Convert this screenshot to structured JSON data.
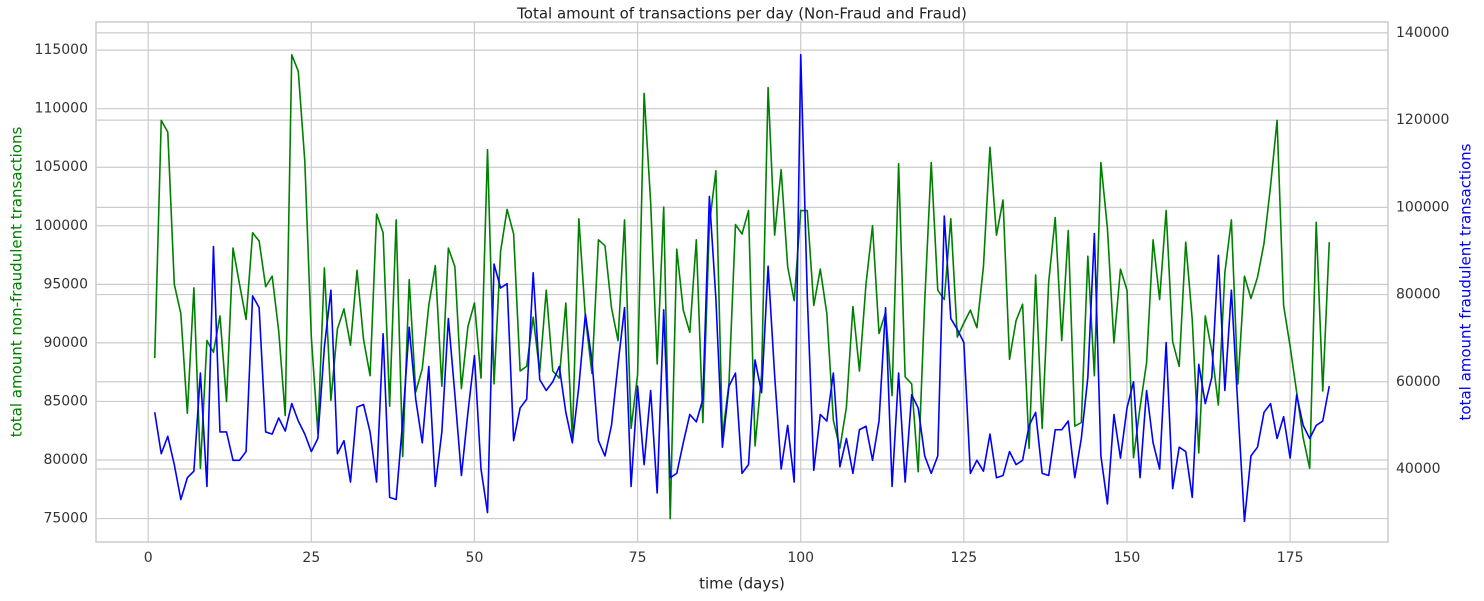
{
  "chart_data": {
    "type": "line",
    "title": "Total amount of transactions per day (Non-Fraud and Fraud)",
    "x_label": "time (days)",
    "y_label": "total amount non-fraudulent transactions",
    "y2_label": "total amount fraudulent transactions",
    "x": [
      1,
      2,
      3,
      4,
      5,
      6,
      7,
      8,
      9,
      10,
      11,
      12,
      13,
      14,
      15,
      16,
      17,
      18,
      19,
      20,
      21,
      22,
      23,
      24,
      25,
      26,
      27,
      28,
      29,
      30,
      31,
      32,
      33,
      34,
      35,
      36,
      37,
      38,
      39,
      40,
      41,
      42,
      43,
      44,
      45,
      46,
      47,
      48,
      49,
      50,
      51,
      52,
      53,
      54,
      55,
      56,
      57,
      58,
      59,
      60,
      61,
      62,
      63,
      64,
      65,
      66,
      67,
      68,
      69,
      70,
      71,
      72,
      73,
      74,
      75,
      76,
      77,
      78,
      79,
      80,
      81,
      82,
      83,
      84,
      85,
      86,
      87,
      88,
      89,
      90,
      91,
      92,
      93,
      94,
      95,
      96,
      97,
      98,
      99,
      100,
      101,
      102,
      103,
      104,
      105,
      106,
      107,
      108,
      109,
      110,
      111,
      112,
      113,
      114,
      115,
      116,
      117,
      118,
      119,
      120,
      121,
      122,
      123,
      124,
      125,
      126,
      127,
      128,
      129,
      130,
      131,
      132,
      133,
      134,
      135,
      136,
      137,
      138,
      139,
      140,
      141,
      142,
      143,
      144,
      145,
      146,
      147,
      148,
      149,
      150,
      151,
      152,
      153,
      154,
      155,
      156,
      157,
      158,
      159,
      160,
      161,
      162,
      163,
      164,
      165,
      166,
      167,
      168,
      169,
      170,
      171,
      172,
      173,
      174,
      175,
      176,
      177,
      178,
      179,
      180,
      181
    ],
    "series": [
      {
        "name": "total amount non-fraudulent transactions",
        "color": "#008000",
        "axis": "y",
        "values": [
          88700,
          109000,
          108000,
          95000,
          92500,
          84000,
          94700,
          79300,
          90200,
          89200,
          92300,
          85000,
          98100,
          95000,
          92000,
          99400,
          98700,
          94800,
          95700,
          91000,
          83800,
          114600,
          113200,
          105500,
          90500,
          82300,
          96400,
          85100,
          91200,
          92900,
          89800,
          96200,
          90300,
          87200,
          101000,
          99400,
          84600,
          100500,
          80300,
          95400,
          85800,
          87800,
          93200,
          96600,
          86300,
          98100,
          96500,
          86100,
          91400,
          93400,
          87000,
          106500,
          86500,
          97800,
          101400,
          99300,
          87600,
          88000,
          92200,
          87500,
          94500,
          87600,
          87000,
          93400,
          81800,
          100600,
          92200,
          87400,
          98800,
          98300,
          93000,
          90200,
          100500,
          82700,
          87300,
          111300,
          102000,
          88200,
          101600,
          75000,
          98000,
          92800,
          90900,
          98800,
          83200,
          100100,
          104700,
          82000,
          86500,
          100100,
          99300,
          101300,
          81200,
          87300,
          111800,
          99200,
          104800,
          96500,
          93600,
          101300,
          101300,
          93200,
          96300,
          92500,
          83400,
          81000,
          84500,
          93100,
          87600,
          95000,
          100000,
          90800,
          92600,
          85500,
          105300,
          87100,
          86500,
          79000,
          93500,
          105400,
          94500,
          93700,
          100600,
          90500,
          91700,
          92800,
          91300,
          96500,
          106700,
          99200,
          102200,
          88600,
          91900,
          93300,
          81000,
          95800,
          82700,
          95200,
          100700,
          90200,
          99600,
          82900,
          83200,
          97400,
          87200,
          105400,
          99800,
          90000,
          96300,
          94500,
          80200,
          84500,
          88300,
          98800,
          93700,
          101300,
          90100,
          88000,
          98600,
          92000,
          80600,
          92300,
          89300,
          84700,
          96000,
          100500,
          86500,
          95700,
          93800,
          95600,
          98500,
          103400,
          109000,
          93200,
          89700,
          85800,
          81900,
          79300,
          100300,
          85900,
          98600
        ]
      },
      {
        "name": "total amount fraudulent transactions",
        "color": "#0000ff",
        "axis": "y2",
        "values": [
          53000,
          43500,
          47500,
          41000,
          33000,
          38000,
          39500,
          62000,
          36000,
          91000,
          48500,
          48500,
          42000,
          42000,
          44000,
          79700,
          77000,
          48500,
          48000,
          51700,
          48700,
          55000,
          51000,
          48000,
          44000,
          47000,
          68000,
          81000,
          43500,
          46500,
          37000,
          54200,
          54800,
          48500,
          37000,
          71000,
          33500,
          33000,
          51000,
          72500,
          56000,
          46000,
          63500,
          36000,
          48500,
          74500,
          57000,
          38500,
          53000,
          66000,
          40000,
          30000,
          87000,
          81500,
          82500,
          46500,
          54000,
          56000,
          85000,
          60500,
          58000,
          60000,
          63500,
          53000,
          46000,
          59000,
          75500,
          65000,
          46500,
          43000,
          50000,
          64000,
          77000,
          36000,
          59000,
          41000,
          58000,
          34500,
          76500,
          38000,
          39000,
          46000,
          52500,
          50800,
          56000,
          102500,
          79000,
          45000,
          59000,
          62000,
          39000,
          41000,
          65000,
          57500,
          86500,
          61500,
          40000,
          50000,
          37000,
          135000,
          80000,
          39700,
          52500,
          51000,
          62000,
          40500,
          47000,
          39000,
          49000,
          49800,
          42000,
          51000,
          77000,
          36000,
          62000,
          37000,
          57000,
          54000,
          43000,
          39000,
          43000,
          98000,
          74500,
          72000,
          69000,
          39000,
          42000,
          39500,
          48000,
          38000,
          38500,
          44000,
          41000,
          42000,
          50000,
          53000,
          39000,
          38500,
          49000,
          49000,
          51000,
          38000,
          47000,
          61000,
          94000,
          43000,
          32000,
          52500,
          42500,
          54000,
          60000,
          38000,
          58000,
          46000,
          40000,
          69000,
          35500,
          45000,
          44000,
          33500,
          64000,
          55000,
          61000,
          89000,
          58000,
          81000,
          54000,
          28000,
          43000,
          45000,
          53000,
          55000,
          47000,
          52000,
          42500,
          57000,
          50000,
          47000,
          50000,
          51000,
          59000
        ]
      }
    ],
    "xlim": [
      -8,
      190
    ],
    "xticks": [
      0,
      25,
      50,
      75,
      100,
      125,
      150,
      175
    ],
    "ylim": [
      73000,
      117400
    ],
    "yticks": [
      75000,
      80000,
      85000,
      90000,
      95000,
      100000,
      105000,
      110000,
      115000
    ],
    "y2lim": [
      23260,
      142500
    ],
    "y2ticks": [
      40000,
      60000,
      80000,
      100000,
      120000,
      140000
    ],
    "grid": true
  }
}
